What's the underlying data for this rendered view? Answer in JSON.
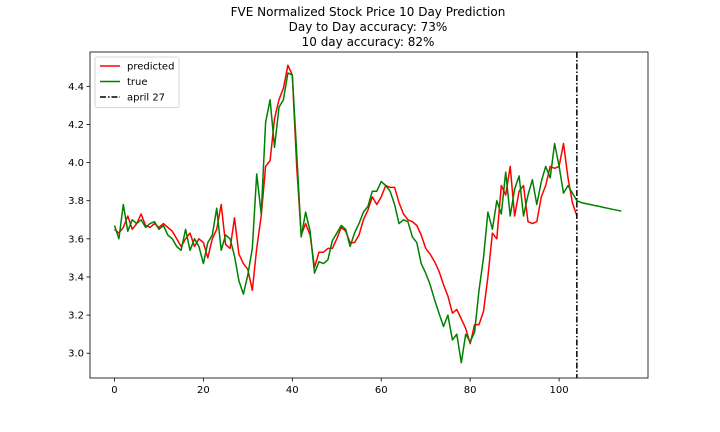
{
  "chart_data": {
    "type": "line",
    "title_lines": [
      "FVE Normalized Stock Price 10 Day Prediction",
      "Day to Day accuracy: 73%",
      "10 day accuracy: 82%"
    ],
    "xlabel": "",
    "ylabel": "",
    "xlim": [
      -5.5,
      120
    ],
    "ylim": [
      2.87,
      4.58
    ],
    "xticks": [
      0,
      20,
      40,
      60,
      80,
      100
    ],
    "xtick_labels": [
      "0",
      "20",
      "40",
      "60",
      "80",
      "100"
    ],
    "yticks": [
      3.0,
      3.2,
      3.4,
      3.6,
      3.8,
      4.0,
      4.2,
      4.4
    ],
    "ytick_labels": [
      "3.0",
      "3.2",
      "3.4",
      "3.6",
      "3.8",
      "4.0",
      "4.2",
      "4.4"
    ],
    "grid": false,
    "legend_position": "top-left",
    "series": [
      {
        "name": "predicted",
        "color": "#ff0000",
        "style": "solid",
        "x": [
          0,
          1,
          2,
          3,
          4,
          5,
          6,
          7,
          8,
          9,
          10,
          11,
          12,
          13,
          14,
          15,
          16,
          17,
          18,
          19,
          20,
          21,
          22,
          23,
          24,
          25,
          26,
          27,
          28,
          29,
          30,
          31,
          32,
          33,
          34,
          35,
          36,
          37,
          38,
          39,
          40,
          41,
          42,
          43,
          44,
          45,
          46,
          47,
          48,
          49,
          50,
          51,
          52,
          53,
          54,
          55,
          56,
          57,
          58,
          59,
          60,
          61,
          62,
          63,
          64,
          65,
          66,
          67,
          68,
          69,
          70,
          71,
          72,
          73,
          74,
          75,
          76,
          77,
          78,
          79,
          80,
          81,
          82,
          83,
          84,
          85,
          86,
          87,
          88,
          89,
          90,
          91,
          92,
          93,
          94,
          95,
          96,
          97,
          98,
          99,
          100,
          101,
          102,
          103,
          104
        ],
        "y": [
          3.65,
          3.63,
          3.66,
          3.72,
          3.65,
          3.68,
          3.73,
          3.67,
          3.66,
          3.68,
          3.66,
          3.68,
          3.66,
          3.64,
          3.6,
          3.56,
          3.6,
          3.63,
          3.56,
          3.6,
          3.58,
          3.5,
          3.6,
          3.65,
          3.78,
          3.57,
          3.55,
          3.71,
          3.52,
          3.47,
          3.44,
          3.33,
          3.55,
          3.72,
          3.98,
          4.01,
          4.23,
          4.33,
          4.39,
          4.51,
          4.46,
          3.98,
          3.62,
          3.68,
          3.62,
          3.45,
          3.53,
          3.53,
          3.55,
          3.55,
          3.6,
          3.66,
          3.64,
          3.58,
          3.58,
          3.62,
          3.7,
          3.75,
          3.82,
          3.78,
          3.82,
          3.88,
          3.87,
          3.87,
          3.79,
          3.73,
          3.7,
          3.69,
          3.67,
          3.62,
          3.55,
          3.52,
          3.48,
          3.43,
          3.36,
          3.3,
          3.21,
          3.23,
          3.18,
          3.13,
          3.05,
          3.15,
          3.15,
          3.22,
          3.4,
          3.63,
          3.6,
          3.88,
          3.83,
          3.98,
          3.72,
          3.85,
          3.88,
          3.69,
          3.68,
          3.69,
          3.82,
          3.88,
          3.98,
          3.97,
          3.98,
          4.1,
          3.92,
          3.79,
          3.72
        ]
      },
      {
        "name": "true",
        "color": "#008000",
        "style": "solid",
        "x": [
          0,
          1,
          2,
          3,
          4,
          5,
          6,
          7,
          8,
          9,
          10,
          11,
          12,
          13,
          14,
          15,
          16,
          17,
          18,
          19,
          20,
          21,
          22,
          23,
          24,
          25,
          26,
          27,
          28,
          29,
          30,
          31,
          32,
          33,
          34,
          35,
          36,
          37,
          38,
          39,
          40,
          41,
          42,
          43,
          44,
          45,
          46,
          47,
          48,
          49,
          50,
          51,
          52,
          53,
          54,
          55,
          56,
          57,
          58,
          59,
          60,
          61,
          62,
          63,
          64,
          65,
          66,
          67,
          68,
          69,
          70,
          71,
          72,
          73,
          74,
          75,
          76,
          77,
          78,
          79,
          80,
          81,
          82,
          83,
          84,
          85,
          86,
          87,
          88,
          89,
          90,
          91,
          92,
          93,
          94,
          95,
          96,
          97,
          98,
          99,
          100,
          101,
          102,
          103,
          104,
          105,
          106,
          107,
          108,
          109,
          110,
          111,
          112,
          113,
          114
        ],
        "y": [
          3.67,
          3.6,
          3.78,
          3.64,
          3.7,
          3.68,
          3.7,
          3.66,
          3.68,
          3.69,
          3.65,
          3.67,
          3.62,
          3.6,
          3.56,
          3.54,
          3.65,
          3.54,
          3.6,
          3.56,
          3.47,
          3.58,
          3.62,
          3.76,
          3.54,
          3.62,
          3.6,
          3.51,
          3.38,
          3.31,
          3.41,
          3.55,
          3.94,
          3.73,
          4.21,
          4.33,
          4.08,
          4.29,
          4.33,
          4.47,
          4.46,
          4.05,
          3.61,
          3.74,
          3.64,
          3.42,
          3.48,
          3.47,
          3.49,
          3.59,
          3.63,
          3.67,
          3.65,
          3.56,
          3.63,
          3.68,
          3.74,
          3.77,
          3.85,
          3.85,
          3.9,
          3.88,
          3.85,
          3.78,
          3.68,
          3.7,
          3.69,
          3.61,
          3.58,
          3.47,
          3.42,
          3.36,
          3.28,
          3.21,
          3.14,
          3.2,
          3.07,
          3.1,
          2.95,
          3.1,
          3.06,
          3.11,
          3.33,
          3.5,
          3.74,
          3.65,
          3.8,
          3.73,
          3.95,
          3.72,
          3.86,
          3.93,
          3.72,
          3.83,
          3.91,
          3.78,
          3.9,
          3.98,
          3.92,
          4.1,
          3.98,
          3.84,
          3.88,
          3.84,
          3.8,
          3.79,
          3.785,
          3.78,
          3.775,
          3.77,
          3.765,
          3.76,
          3.755,
          3.75,
          3.745
        ]
      }
    ],
    "vlines": [
      {
        "name": "april 27",
        "x": 104,
        "color": "#000000",
        "style": "dashdot"
      }
    ]
  }
}
